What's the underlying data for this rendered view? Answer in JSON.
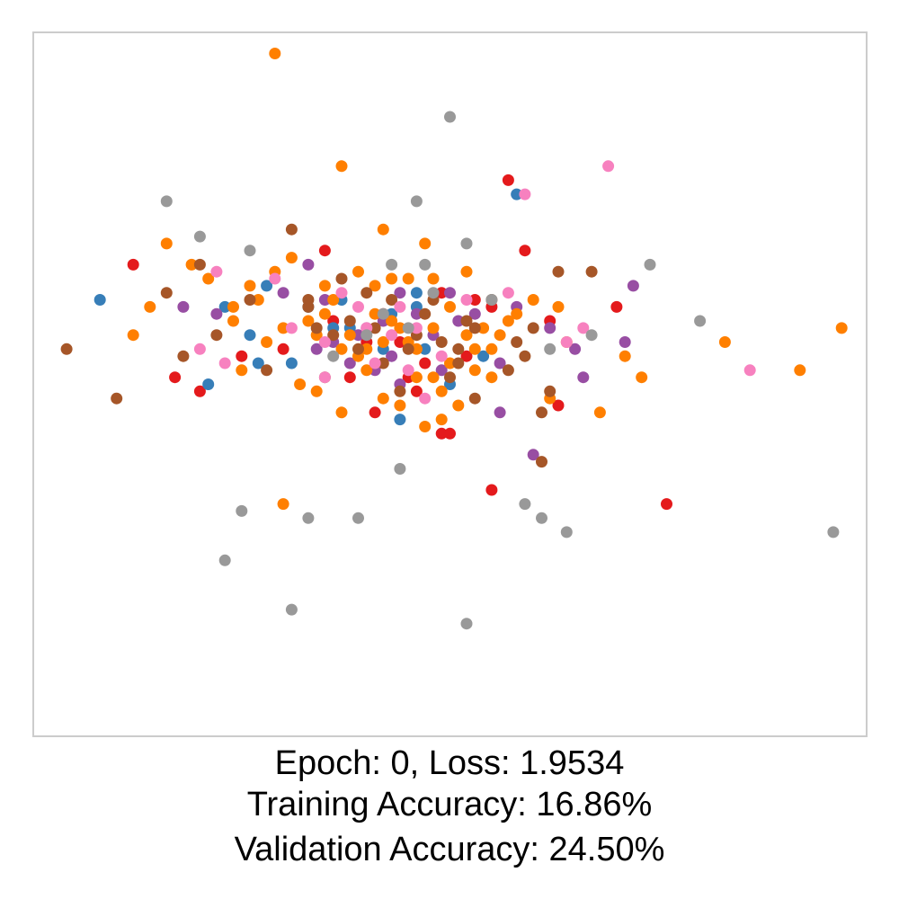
{
  "caption": {
    "line1": "Epoch: 0, Loss: 1.9534",
    "line2": "Training Accuracy: 16.86%",
    "line3": "Validation Accuracy: 24.50%"
  },
  "chart_data": {
    "type": "scatter",
    "title": "",
    "xlabel": "",
    "ylabel": "",
    "axes_visible": false,
    "grid": false,
    "legend": "none",
    "xlim": [
      0,
      100
    ],
    "ylim": [
      0,
      100
    ],
    "series": [
      {
        "color": "#e41a1c",
        "points": [
          [
            12,
            67
          ],
          [
            17,
            51
          ],
          [
            20,
            49
          ],
          [
            41,
            46
          ],
          [
            45,
            51
          ],
          [
            52,
            54
          ],
          [
            55,
            61
          ],
          [
            62,
            59
          ],
          [
            63,
            47
          ],
          [
            49,
            43
          ],
          [
            36,
            59
          ],
          [
            30,
            55
          ],
          [
            25,
            54
          ],
          [
            35,
            69
          ],
          [
            59,
            69
          ],
          [
            50,
            43
          ],
          [
            55,
            35
          ],
          [
            57,
            79
          ],
          [
            70,
            61
          ],
          [
            76,
            33
          ],
          [
            44,
            56
          ],
          [
            47,
            53
          ],
          [
            42,
            60
          ],
          [
            38,
            51
          ],
          [
            53,
            62
          ],
          [
            46,
            49
          ],
          [
            40,
            56
          ],
          [
            49,
            63
          ]
        ]
      },
      {
        "color": "#377eb8",
        "points": [
          [
            8,
            62
          ],
          [
            21,
            50
          ],
          [
            23,
            61
          ],
          [
            26,
            57
          ],
          [
            27,
            53
          ],
          [
            28,
            64
          ],
          [
            36,
            58
          ],
          [
            42,
            55
          ],
          [
            46,
            61
          ],
          [
            50,
            50
          ],
          [
            54,
            54
          ],
          [
            44,
            45
          ],
          [
            46,
            63
          ],
          [
            47,
            55
          ],
          [
            38,
            58
          ],
          [
            37,
            62
          ],
          [
            43,
            60
          ],
          [
            58,
            77
          ],
          [
            33,
            61
          ],
          [
            31,
            53
          ]
        ]
      },
      {
        "color": "#4daf4a",
        "points": []
      },
      {
        "color": "#984ea3",
        "points": [
          [
            18,
            61
          ],
          [
            22,
            60
          ],
          [
            30,
            63
          ],
          [
            34,
            55
          ],
          [
            38,
            53
          ],
          [
            40,
            58
          ],
          [
            44,
            50
          ],
          [
            49,
            52
          ],
          [
            51,
            59
          ],
          [
            53,
            60
          ],
          [
            56,
            46
          ],
          [
            60,
            40
          ],
          [
            62,
            58
          ],
          [
            65,
            55
          ],
          [
            66,
            51
          ],
          [
            72,
            64
          ],
          [
            71,
            56
          ],
          [
            56,
            53
          ],
          [
            39,
            57
          ],
          [
            46,
            60
          ],
          [
            42,
            59
          ],
          [
            33,
            67
          ],
          [
            35,
            62
          ],
          [
            58,
            61
          ],
          [
            41,
            52
          ],
          [
            44,
            63
          ],
          [
            36,
            56
          ],
          [
            50,
            63
          ],
          [
            48,
            57
          ],
          [
            43,
            54
          ]
        ]
      },
      {
        "color": "#ff7f00",
        "points": [
          [
            29,
            97
          ],
          [
            37,
            81
          ],
          [
            16,
            70
          ],
          [
            14,
            61
          ],
          [
            12,
            57
          ],
          [
            19,
            67
          ],
          [
            21,
            65
          ],
          [
            27,
            62
          ],
          [
            30,
            58
          ],
          [
            33,
            59
          ],
          [
            35,
            60
          ],
          [
            38,
            57
          ],
          [
            40,
            55
          ],
          [
            43,
            59
          ],
          [
            45,
            56
          ],
          [
            48,
            58
          ],
          [
            50,
            53
          ],
          [
            52,
            57
          ],
          [
            55,
            55
          ],
          [
            58,
            60
          ],
          [
            60,
            62
          ],
          [
            63,
            61
          ],
          [
            64,
            56
          ],
          [
            71,
            54
          ],
          [
            73,
            51
          ],
          [
            83,
            56
          ],
          [
            92,
            52
          ],
          [
            97,
            58
          ],
          [
            42,
            72
          ],
          [
            47,
            70
          ],
          [
            24,
            59
          ],
          [
            30,
            33
          ],
          [
            25,
            52
          ],
          [
            24,
            61
          ],
          [
            62,
            48
          ],
          [
            68,
            46
          ],
          [
            32,
            50
          ],
          [
            34,
            49
          ],
          [
            44,
            47
          ],
          [
            46,
            51
          ],
          [
            37,
            46
          ],
          [
            41,
            64
          ],
          [
            48,
            65
          ],
          [
            31,
            68
          ],
          [
            26,
            64
          ],
          [
            29,
            66
          ],
          [
            35,
            64
          ],
          [
            39,
            66
          ],
          [
            45,
            65
          ],
          [
            52,
            66
          ],
          [
            53,
            52
          ],
          [
            56,
            57
          ],
          [
            49,
            49
          ],
          [
            51,
            47
          ],
          [
            42,
            48
          ],
          [
            47,
            44
          ],
          [
            43,
            65
          ],
          [
            37,
            55
          ],
          [
            41,
            60
          ],
          [
            46,
            55
          ],
          [
            50,
            61
          ],
          [
            53,
            55
          ],
          [
            40,
            52
          ],
          [
            44,
            58
          ],
          [
            48,
            51
          ],
          [
            36,
            62
          ],
          [
            39,
            54
          ],
          [
            42,
            56
          ],
          [
            34,
            57
          ],
          [
            28,
            56
          ],
          [
            54,
            58
          ],
          [
            57,
            59
          ],
          [
            55,
            51
          ],
          [
            49,
            45
          ]
        ]
      },
      {
        "color": "#a65628",
        "points": [
          [
            4,
            55
          ],
          [
            10,
            48
          ],
          [
            16,
            63
          ],
          [
            18,
            54
          ],
          [
            20,
            67
          ],
          [
            22,
            57
          ],
          [
            26,
            62
          ],
          [
            31,
            72
          ],
          [
            33,
            61
          ],
          [
            37,
            65
          ],
          [
            39,
            55
          ],
          [
            41,
            58
          ],
          [
            43,
            62
          ],
          [
            45,
            55
          ],
          [
            47,
            60
          ],
          [
            49,
            56
          ],
          [
            51,
            53
          ],
          [
            53,
            58
          ],
          [
            55,
            62
          ],
          [
            57,
            52
          ],
          [
            60,
            58
          ],
          [
            63,
            66
          ],
          [
            67,
            66
          ],
          [
            62,
            49
          ],
          [
            61,
            39
          ],
          [
            61,
            46
          ],
          [
            53,
            48
          ],
          [
            51,
            55
          ],
          [
            28,
            52
          ],
          [
            40,
            63
          ],
          [
            44,
            49
          ],
          [
            46,
            57
          ],
          [
            48,
            62
          ],
          [
            50,
            51
          ],
          [
            52,
            59
          ],
          [
            42,
            53
          ],
          [
            38,
            59
          ],
          [
            35,
            51
          ],
          [
            33,
            62
          ],
          [
            58,
            56
          ],
          [
            36,
            57
          ],
          [
            59,
            54
          ],
          [
            34,
            58
          ]
        ]
      },
      {
        "color": "#f781bf",
        "points": [
          [
            22,
            66
          ],
          [
            20,
            55
          ],
          [
            23,
            53
          ],
          [
            29,
            65
          ],
          [
            31,
            58
          ],
          [
            35,
            56
          ],
          [
            39,
            61
          ],
          [
            41,
            53
          ],
          [
            43,
            57
          ],
          [
            46,
            58
          ],
          [
            49,
            54
          ],
          [
            52,
            62
          ],
          [
            57,
            63
          ],
          [
            64,
            56
          ],
          [
            66,
            58
          ],
          [
            69,
            81
          ],
          [
            86,
            52
          ],
          [
            59,
            77
          ],
          [
            35,
            51
          ],
          [
            44,
            61
          ],
          [
            47,
            48
          ],
          [
            37,
            63
          ],
          [
            40,
            58
          ],
          [
            45,
            52
          ]
        ]
      },
      {
        "color": "#999999",
        "points": [
          [
            16,
            76
          ],
          [
            20,
            71
          ],
          [
            26,
            69
          ],
          [
            40,
            57
          ],
          [
            42,
            60
          ],
          [
            43,
            67
          ],
          [
            47,
            67
          ],
          [
            48,
            63
          ],
          [
            52,
            70
          ],
          [
            46,
            76
          ],
          [
            50,
            88
          ],
          [
            44,
            38
          ],
          [
            33,
            31
          ],
          [
            36,
            54
          ],
          [
            39,
            31
          ],
          [
            23,
            25
          ],
          [
            25,
            32
          ],
          [
            31,
            18
          ],
          [
            52,
            16
          ],
          [
            59,
            33
          ],
          [
            61,
            31
          ],
          [
            64,
            29
          ],
          [
            62,
            55
          ],
          [
            67,
            57
          ],
          [
            74,
            67
          ],
          [
            80,
            59
          ],
          [
            96,
            29
          ],
          [
            55,
            62
          ],
          [
            45,
            58
          ]
        ]
      }
    ]
  }
}
